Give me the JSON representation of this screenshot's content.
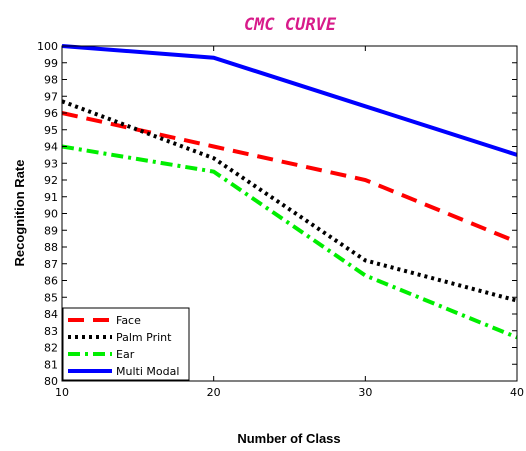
{
  "chart_data": {
    "type": "line",
    "title": "CMC CURVE",
    "title_color": "#d81b8a",
    "xlabel": "Number of Class",
    "ylabel": "Recognition Rate",
    "x": [
      10,
      20,
      30,
      40
    ],
    "xlim": [
      10,
      40
    ],
    "ylim": [
      80,
      100
    ],
    "x_ticks": [
      10,
      20,
      30,
      40
    ],
    "y_ticks": [
      80,
      81,
      82,
      83,
      84,
      85,
      86,
      87,
      88,
      89,
      90,
      91,
      92,
      93,
      94,
      95,
      96,
      97,
      98,
      99,
      100
    ],
    "grid": false,
    "legend_position": "bottom-left",
    "series": [
      {
        "name": "Face",
        "values": [
          96,
          94,
          92,
          88.3
        ],
        "color": "#ff0000",
        "style": "dashed"
      },
      {
        "name": "Palm Print",
        "values": [
          96.7,
          93.3,
          87.2,
          84.8
        ],
        "color": "#000000",
        "style": "dotted"
      },
      {
        "name": "Ear",
        "values": [
          94,
          92.5,
          86.3,
          82.6
        ],
        "color": "#00ee00",
        "style": "dash-dot"
      },
      {
        "name": "Multi Modal",
        "values": [
          100,
          99.3,
          96.4,
          93.5
        ],
        "color": "#0000ff",
        "style": "solid"
      }
    ]
  }
}
